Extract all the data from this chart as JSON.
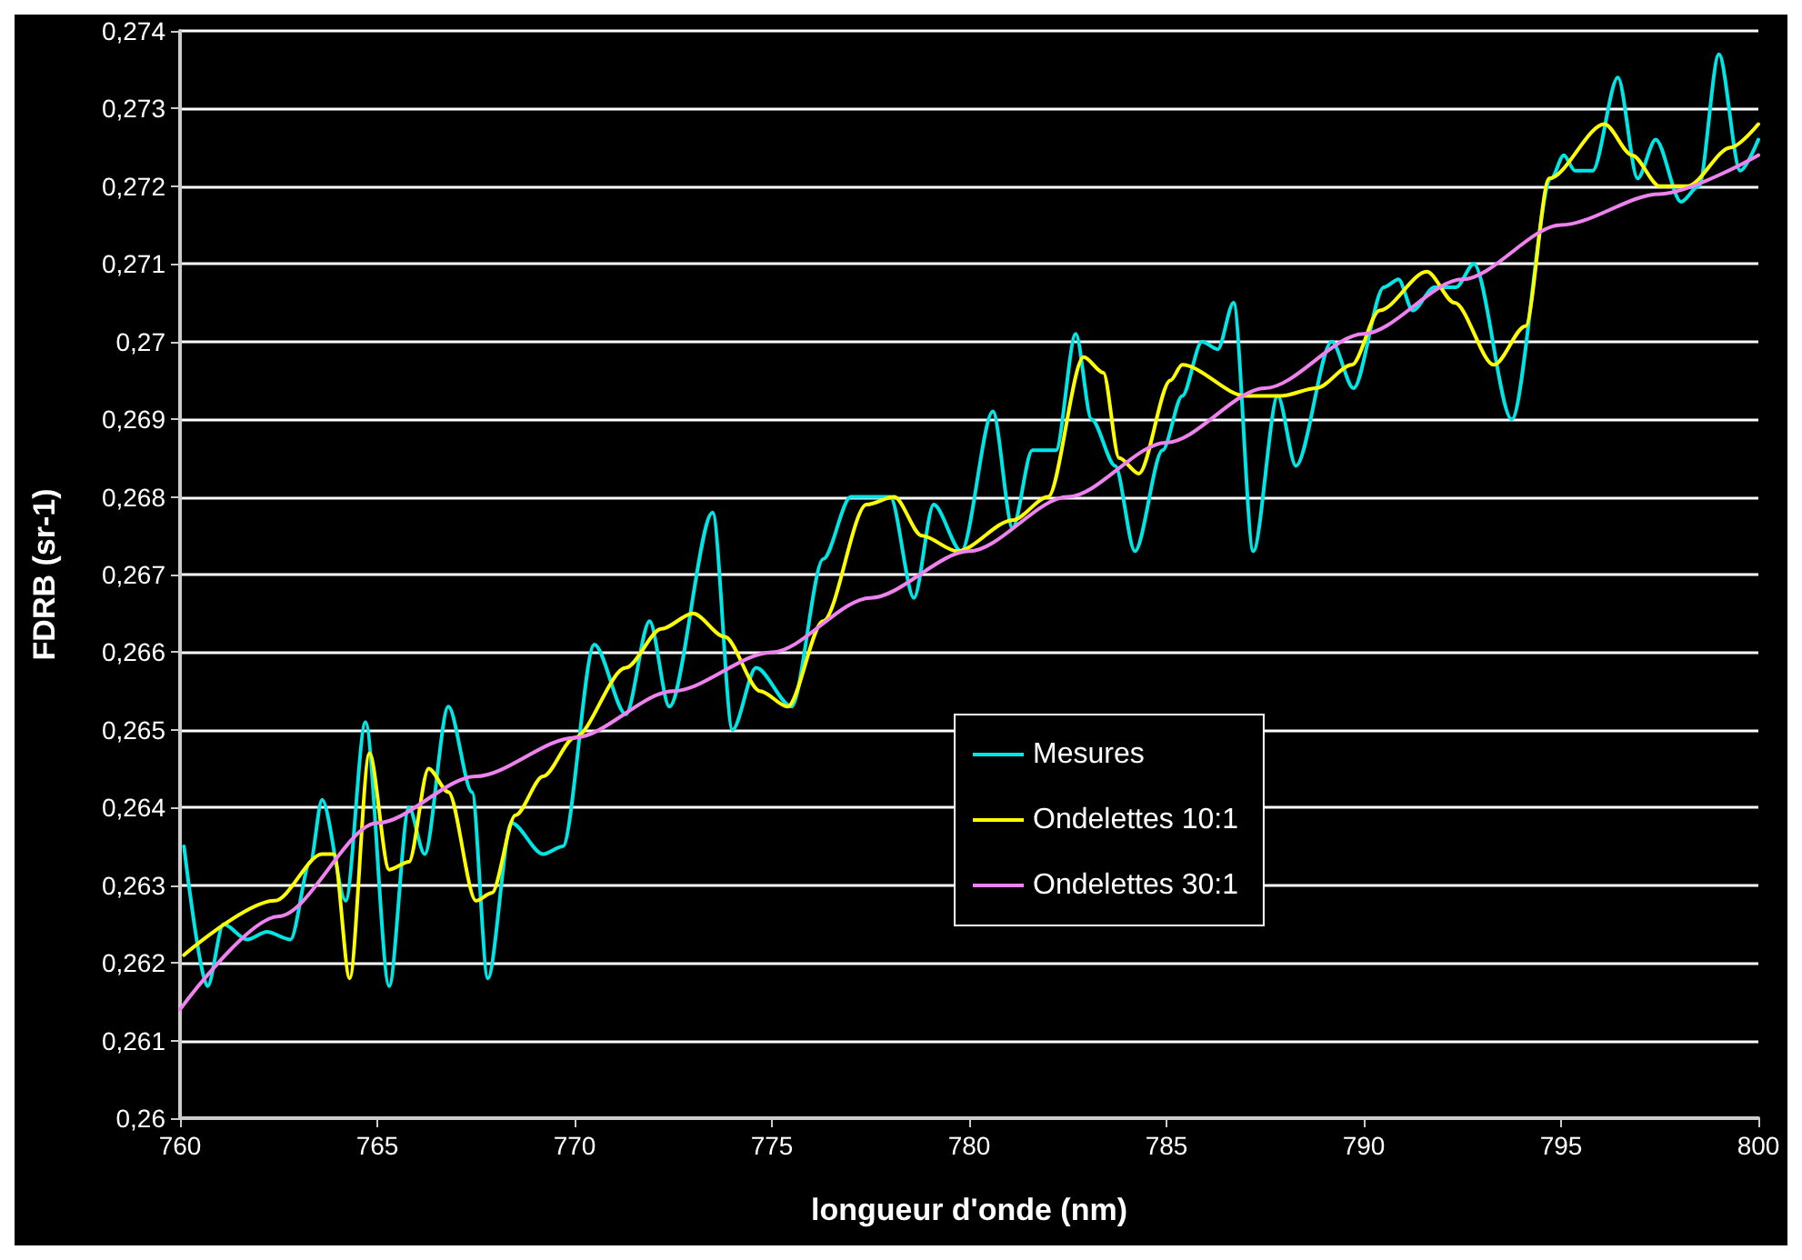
{
  "chart_data": {
    "type": "line",
    "xlabel": "longueur d'onde (nm)",
    "ylabel": "FDRB (sr-1)",
    "xlim": [
      760,
      800
    ],
    "xticks": [
      760,
      765,
      770,
      775,
      780,
      785,
      790,
      795,
      800
    ],
    "ylim": [
      0.26,
      0.274
    ],
    "yticks": [
      {
        "value": 0.26,
        "label": "0,26"
      },
      {
        "value": 0.261,
        "label": "0,261"
      },
      {
        "value": 0.262,
        "label": "0,262"
      },
      {
        "value": 0.263,
        "label": "0,263"
      },
      {
        "value": 0.264,
        "label": "0,264"
      },
      {
        "value": 0.265,
        "label": "0,265"
      },
      {
        "value": 0.266,
        "label": "0,266"
      },
      {
        "value": 0.267,
        "label": "0,267"
      },
      {
        "value": 0.268,
        "label": "0,268"
      },
      {
        "value": 0.269,
        "label": "0,269"
      },
      {
        "value": 0.27,
        "label": "0,27"
      },
      {
        "value": 0.271,
        "label": "0,271"
      },
      {
        "value": 0.272,
        "label": "0,272"
      },
      {
        "value": 0.273,
        "label": "0,273"
      },
      {
        "value": 0.274,
        "label": "0,274"
      }
    ],
    "grid": "y",
    "legend": "bottom",
    "marker": "none",
    "line_style": "solid",
    "series": [
      {
        "name": "Mesures",
        "color": "#00e5e5",
        "x": [
          760.1,
          760.7,
          761.1,
          761.7,
          762.2,
          762.8,
          763.3,
          763.6,
          764.2,
          764.7,
          765.3,
          765.8,
          766.2,
          766.8,
          767.4,
          767.8,
          768.4,
          769.2,
          769.7,
          770.5,
          771.3,
          771.9,
          772.4,
          773.5,
          774.0,
          774.6,
          775.5,
          776.3,
          777.0,
          777.7,
          778.0,
          778.6,
          779.1,
          779.8,
          780.6,
          781.1,
          781.6,
          782.2,
          782.7,
          783.1,
          783.7,
          784.2,
          784.9,
          785.4,
          785.9,
          786.3,
          786.7,
          787.2,
          787.82,
          788.28,
          789.19,
          789.74,
          790.51,
          790.88,
          791.24,
          791.79,
          792.34,
          792.79,
          793.75,
          794.75,
          795.07,
          795.35,
          795.8,
          796.44,
          796.94,
          797.4,
          798.04,
          798.49,
          799.0,
          799.54,
          800.0
        ],
        "values": [
          0.2635,
          0.2617,
          0.2625,
          0.2623,
          0.2624,
          0.2623,
          0.2633,
          0.2641,
          0.2628,
          0.2651,
          0.2617,
          0.264,
          0.2634,
          0.2653,
          0.2642,
          0.2618,
          0.2638,
          0.2634,
          0.2635,
          0.2661,
          0.2652,
          0.2664,
          0.2653,
          0.2678,
          0.265,
          0.2658,
          0.2653,
          0.2672,
          0.268,
          0.268,
          0.268,
          0.2667,
          0.2679,
          0.2673,
          0.2691,
          0.2676,
          0.2686,
          0.2686,
          0.2701,
          0.269,
          0.2684,
          0.2673,
          0.2686,
          0.2693,
          0.27,
          0.2699,
          0.2705,
          0.2673,
          0.2693,
          0.2684,
          0.27,
          0.2694,
          0.2707,
          0.2708,
          0.2704,
          0.2707,
          0.2707,
          0.271,
          0.269,
          0.2721,
          0.2724,
          0.2722,
          0.2722,
          0.2734,
          0.2721,
          0.2726,
          0.2718,
          0.272,
          0.2737,
          0.2722,
          0.2726
        ]
      },
      {
        "name": "Ondelettes 10:1",
        "color": "#ffff00",
        "x": [
          760.1,
          762.4,
          763.6,
          763.9,
          764.3,
          764.8,
          765.3,
          765.8,
          766.3,
          766.8,
          767.5,
          767.9,
          768.5,
          769.2,
          770.0,
          771.3,
          772.2,
          773.0,
          773.8,
          774.7,
          775.4,
          776.3,
          777.4,
          778.1,
          778.8,
          779.7,
          781.1,
          782.0,
          782.9,
          783.4,
          783.8,
          784.3,
          785.1,
          785.4,
          787.0,
          787.9,
          788.8,
          789.7,
          790.4,
          791.6,
          792.3,
          793.3,
          794.1,
          794.7,
          796.1,
          796.8,
          797.5,
          798.2,
          799.3,
          800.0
        ],
        "values": [
          0.2621,
          0.2628,
          0.2634,
          0.2634,
          0.2618,
          0.2647,
          0.2632,
          0.2633,
          0.2645,
          0.2642,
          0.2628,
          0.2629,
          0.2639,
          0.2644,
          0.2649,
          0.2658,
          0.2663,
          0.2665,
          0.2662,
          0.2655,
          0.2653,
          0.2664,
          0.2679,
          0.268,
          0.2675,
          0.2673,
          0.2677,
          0.268,
          0.2698,
          0.2696,
          0.2685,
          0.2683,
          0.2695,
          0.2697,
          0.2693,
          0.2693,
          0.2694,
          0.2697,
          0.2704,
          0.2709,
          0.2705,
          0.2697,
          0.2702,
          0.2721,
          0.2728,
          0.2724,
          0.272,
          0.272,
          0.2725,
          0.2728
        ]
      },
      {
        "name": "Ondelettes 30:1",
        "color": "#ee82ee",
        "x": [
          760,
          762.5,
          765,
          767.5,
          770,
          772.5,
          775,
          777.5,
          780,
          782.5,
          785,
          787.5,
          790,
          792.5,
          795,
          797.5,
          800
        ],
        "values": [
          0.2614,
          0.2626,
          0.2638,
          0.2644,
          0.2649,
          0.2655,
          0.266,
          0.2667,
          0.2673,
          0.268,
          0.2687,
          0.2694,
          0.2701,
          0.2708,
          0.2715,
          0.2719,
          0.2724
        ]
      }
    ]
  }
}
